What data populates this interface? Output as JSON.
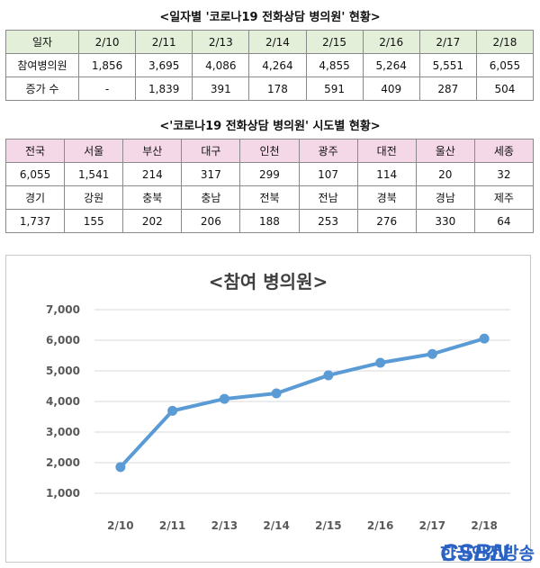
{
  "table1": {
    "title": "<일자별 '코로나19 전화상담 병의원' 현황>",
    "header": [
      "일자",
      "2/10",
      "2/11",
      "2/13",
      "2/14",
      "2/15",
      "2/16",
      "2/17",
      "2/18"
    ],
    "rows": [
      [
        "참여병의원",
        "1,856",
        "3,695",
        "4,086",
        "4,264",
        "4,855",
        "5,264",
        "5,551",
        "6,055"
      ],
      [
        "증가 수",
        "-",
        "1,839",
        "391",
        "178",
        "591",
        "409",
        "287",
        "504"
      ]
    ]
  },
  "table2": {
    "title": "<'코로나19 전화상담 병의원' 시도별 현황>",
    "rows": [
      [
        "전국",
        "서울",
        "부산",
        "대구",
        "인천",
        "광주",
        "대전",
        "울산",
        "세종"
      ],
      [
        "6,055",
        "1,541",
        "214",
        "317",
        "299",
        "107",
        "114",
        "20",
        "32"
      ],
      [
        "경기",
        "강원",
        "충북",
        "충남",
        "전북",
        "전남",
        "경북",
        "경남",
        "제주"
      ],
      [
        "1,737",
        "155",
        "202",
        "206",
        "188",
        "253",
        "276",
        "330",
        "64"
      ]
    ]
  },
  "chart_data": {
    "type": "line",
    "title": "<참여 병의원>",
    "categories": [
      "2/10",
      "2/11",
      "2/13",
      "2/14",
      "2/15",
      "2/16",
      "2/17",
      "2/18"
    ],
    "values": [
      1856,
      3695,
      4086,
      4264,
      4855,
      5264,
      5551,
      6055
    ],
    "ylim": [
      1000,
      7000
    ],
    "yticks": [
      "1,000",
      "2,000",
      "3,000",
      "4,000",
      "5,000",
      "6,000",
      "7,000"
    ],
    "grid": true,
    "color": "#5b9bd5"
  },
  "watermark": {
    "logo_text": "CSBN",
    "text": "한국안전방송"
  }
}
